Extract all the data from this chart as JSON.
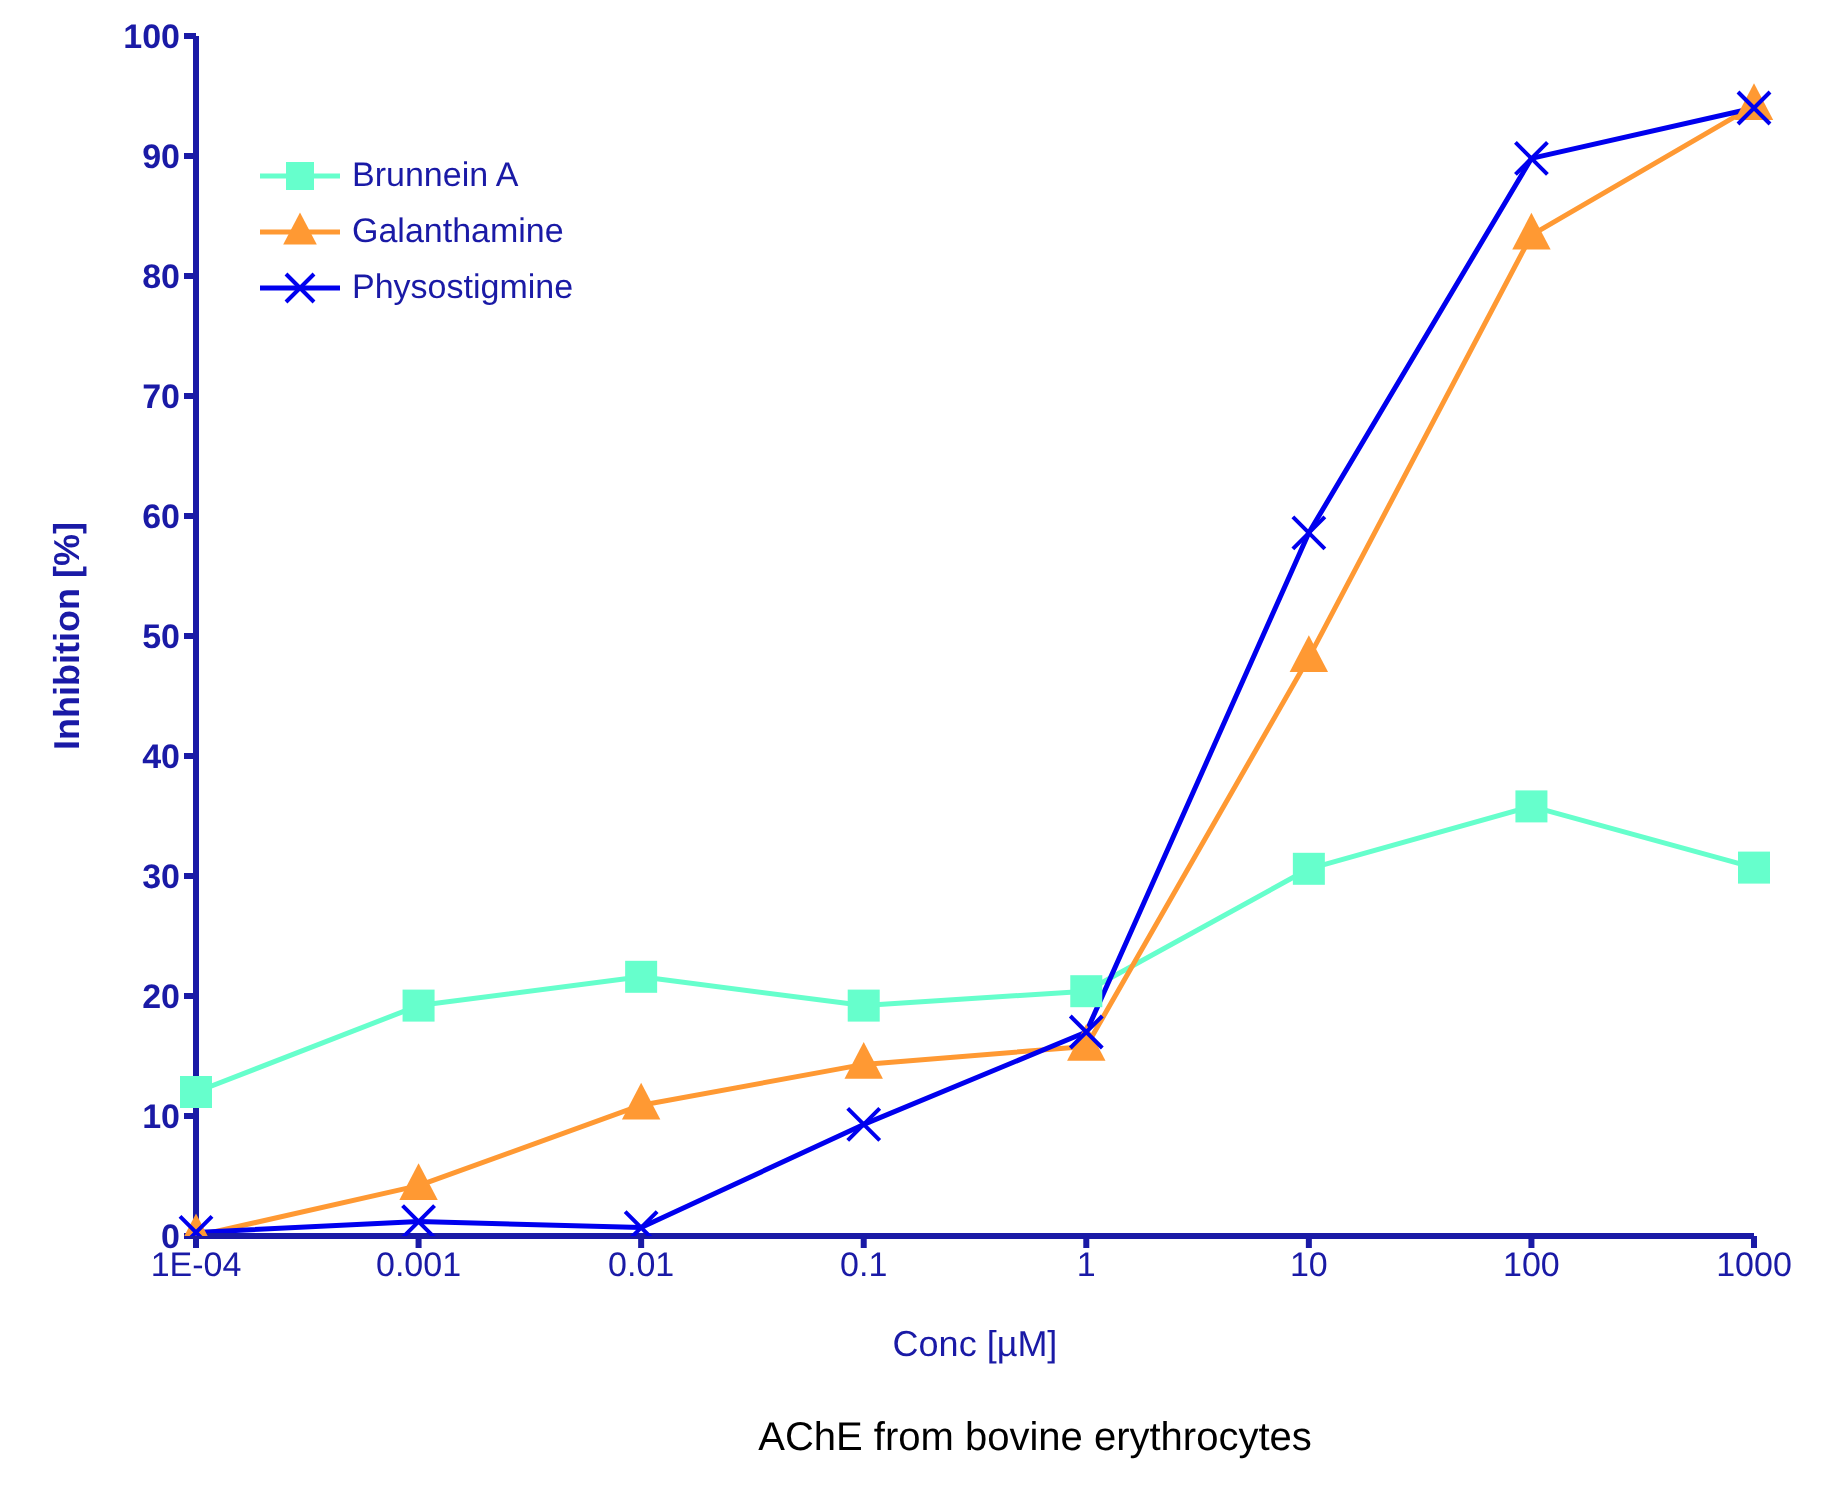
{
  "chart_data": {
    "type": "line",
    "xlabel": "Conc [µM]",
    "ylabel": "Inhibition [%]",
    "annotations": [
      "AChE from bovine erythrocytes"
    ],
    "categories": [
      "1E-04",
      "0.001",
      "0.01",
      "0.1",
      "1",
      "10",
      "100",
      "1000"
    ],
    "ylim": [
      0,
      100
    ],
    "yticks": [
      0,
      10,
      20,
      30,
      40,
      50,
      60,
      70,
      80,
      90,
      100
    ],
    "grid": false,
    "legend": "top left",
    "series": [
      {
        "name": "Brunnein A",
        "color": "#66ffcc",
        "marker": "square",
        "values": [
          12,
          19.2,
          21.6,
          19.2,
          20.4,
          30.6,
          35.8,
          30.7
        ]
      },
      {
        "name": "Galanthamine",
        "color": "#ff9933",
        "marker": "triangle",
        "values": [
          0,
          4.2,
          10.9,
          14.3,
          15.8,
          48.2,
          83.4,
          94.2
        ]
      },
      {
        "name": "Physostigmine",
        "color": "#0000ee",
        "marker": "cross",
        "values": [
          0.3,
          1.2,
          0.7,
          9.3,
          17,
          58.6,
          89.8,
          94
        ]
      }
    ]
  }
}
